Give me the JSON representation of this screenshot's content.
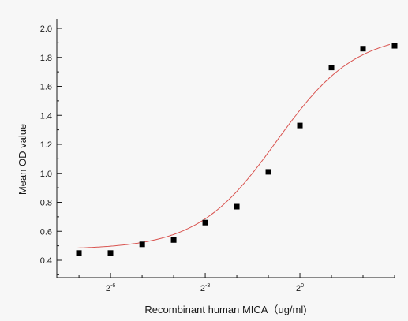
{
  "chart_data": {
    "type": "scatter",
    "xlabel": "Recombinant human MICA（ug/ml)",
    "ylabel": "Mean OD value",
    "x_scale": "log2",
    "x_ticks": [
      {
        "base": "2",
        "exp": "-6",
        "value": 0.015625
      },
      {
        "base": "2",
        "exp": "-3",
        "value": 0.125
      },
      {
        "base": "2",
        "exp": "0",
        "value": 1
      }
    ],
    "xlim": [
      0.0048,
      8.0
    ],
    "ylim": [
      0.3,
      2.0
    ],
    "y_ticks": [
      "0.4",
      "0.6",
      "0.8",
      "1.0",
      "1.2",
      "1.4",
      "1.6",
      "1.8",
      "2.0"
    ],
    "series": [
      {
        "kind": "points",
        "marker": "square",
        "color": "#000000",
        "x": [
          0.0078,
          0.0156,
          0.0313,
          0.0625,
          0.125,
          0.25,
          0.5,
          1,
          2,
          4,
          8
        ],
        "y": [
          0.45,
          0.45,
          0.51,
          0.54,
          0.66,
          0.77,
          1.01,
          1.33,
          1.73,
          1.86,
          1.88
        ]
      },
      {
        "kind": "fit-line",
        "color": "#d9534f",
        "model": "4PL",
        "bottom": 0.475,
        "top": 1.97,
        "ec50": 0.6,
        "hill": 1.15
      }
    ],
    "grid": false,
    "legend": "none"
  }
}
